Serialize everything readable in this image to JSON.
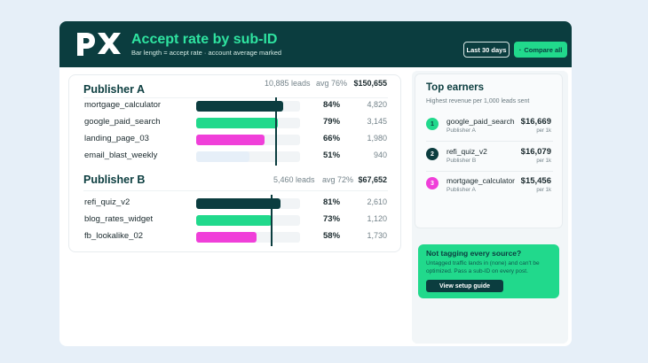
{
  "header": {
    "title": "Accept rate by sub-ID",
    "subtitle": "Bar length = accept rate · account average marked",
    "range_button": "Last 30 days",
    "compare_button": "Compare all",
    "compare_icon": "dot-icon",
    "logo": "px-logo"
  },
  "publishers": [
    {
      "name": "Publisher A",
      "leads": "10,885 leads",
      "avg_label": "avg 76%",
      "avg": 0.76,
      "revenue": "$150,655",
      "rows": [
        {
          "label": "mortgage_calculator",
          "rate_label": "84%",
          "rate": 0.84,
          "count": "4,820",
          "color": "#0b3d3f"
        },
        {
          "label": "google_paid_search",
          "rate_label": "79%",
          "rate": 0.79,
          "count": "3,145",
          "color": "#21d98c"
        },
        {
          "label": "landing_page_03",
          "rate_label": "66%",
          "rate": 0.66,
          "count": "1,980",
          "color": "#f03fd9"
        },
        {
          "label": "email_blast_weekly",
          "rate_label": "51%",
          "rate": 0.51,
          "count": "940",
          "color": "#e6eff8"
        }
      ]
    },
    {
      "name": "Publisher B",
      "leads": "5,460 leads",
      "avg_label": "avg 72%",
      "avg": 0.72,
      "revenue": "$67,652",
      "rows": [
        {
          "label": "refi_quiz_v2",
          "rate_label": "81%",
          "rate": 0.81,
          "count": "2,610",
          "color": "#0b3d3f"
        },
        {
          "label": "blog_rates_widget",
          "rate_label": "73%",
          "rate": 0.73,
          "count": "1,120",
          "color": "#21d98c"
        },
        {
          "label": "fb_lookalike_02",
          "rate_label": "58%",
          "rate": 0.58,
          "count": "1,730",
          "color": "#f03fd9"
        }
      ]
    }
  ],
  "top_earners": {
    "title": "Top earners",
    "subtitle": "Highest revenue per 1,000 leads sent",
    "items": [
      {
        "rank": "1",
        "name": "google_paid_search",
        "publisher": "Publisher A",
        "value": "$16,669",
        "per": "per 1k",
        "badge_bg": "#21d98c",
        "badge_fg": "#0b3d3f"
      },
      {
        "rank": "2",
        "name": "refi_quiz_v2",
        "publisher": "Publisher B",
        "value": "$16,079",
        "per": "per 1k",
        "badge_bg": "#0b3d3f",
        "badge_fg": "#ffffff"
      },
      {
        "rank": "3",
        "name": "mortgage_calculator",
        "publisher": "Publisher A",
        "value": "$15,456",
        "per": "per 1k",
        "badge_bg": "#f03fd9",
        "badge_fg": "#ffffff"
      }
    ]
  },
  "promo": {
    "title": "Not tagging every source?",
    "text": "Untagged traffic lands in (none) and can't be optimized. Pass a sub-ID on every post.",
    "button": "View setup guide"
  }
}
